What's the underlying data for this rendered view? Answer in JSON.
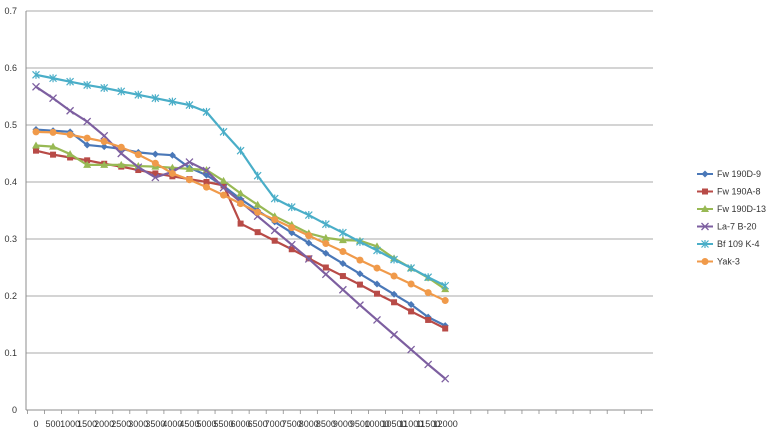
{
  "chart_data": {
    "type": "line",
    "title": "",
    "xlabel": "",
    "ylabel": "",
    "ylim": [
      0,
      0.7
    ],
    "yticks": [
      "0",
      "0.1",
      "0.2",
      "0.3",
      "0.4",
      "0.5",
      "0.6",
      "0.7"
    ],
    "grid": "horizontal",
    "legend": "right",
    "x": [
      0,
      500,
      1000,
      1500,
      2000,
      2500,
      3000,
      3500,
      4000,
      4500,
      5000,
      5500,
      6000,
      6500,
      7000,
      7500,
      8000,
      8500,
      9000,
      9500,
      10000,
      10500,
      11000,
      11500,
      12000
    ],
    "xticks": [
      "0",
      "500",
      "1000",
      "1500",
      "2000",
      "2500",
      "3000",
      "3500",
      "4000",
      "4500",
      "5000",
      "5500",
      "6000",
      "6500",
      "7000",
      "7500",
      "8000",
      "8500",
      "9000",
      "9500",
      "10000",
      "10500",
      "11000",
      "11500",
      "12000"
    ],
    "series": [
      {
        "name": "Fw 190D-9",
        "color": "#4a78b8",
        "marker": "diamond",
        "values": [
          0.492,
          0.49,
          0.488,
          0.465,
          0.462,
          0.458,
          0.452,
          0.449,
          0.447,
          0.425,
          0.412,
          0.393,
          0.37,
          0.35,
          0.33,
          0.311,
          0.293,
          0.275,
          0.257,
          0.239,
          0.221,
          0.203,
          0.185,
          0.163,
          0.148
        ]
      },
      {
        "name": "Fw 190A-8",
        "color": "#b84b47",
        "marker": "square",
        "values": [
          0.455,
          0.448,
          0.443,
          0.438,
          0.432,
          0.427,
          0.421,
          0.415,
          0.41,
          0.405,
          0.4,
          0.394,
          0.327,
          0.312,
          0.297,
          0.282,
          0.266,
          0.25,
          0.235,
          0.22,
          0.204,
          0.189,
          0.173,
          0.158,
          0.143
        ]
      },
      {
        "name": "Fw 190D-13",
        "color": "#98b954",
        "marker": "triangle",
        "values": [
          0.464,
          0.462,
          0.449,
          0.43,
          0.43,
          0.43,
          0.428,
          0.427,
          0.425,
          0.423,
          0.421,
          0.402,
          0.38,
          0.36,
          0.34,
          0.325,
          0.31,
          0.302,
          0.298,
          0.297,
          0.287,
          0.266,
          0.249,
          0.232,
          0.212
        ]
      },
      {
        "name": "La-7 B-20",
        "color": "#7d5fa0",
        "marker": "cross",
        "values": [
          0.567,
          0.547,
          0.525,
          0.506,
          0.481,
          0.45,
          0.426,
          0.408,
          0.418,
          0.435,
          0.42,
          0.39,
          0.365,
          0.34,
          0.315,
          0.29,
          0.265,
          0.238,
          0.211,
          0.184,
          0.158,
          0.132,
          0.106,
          0.08,
          0.055
        ]
      },
      {
        "name": "Bf 109 K-4",
        "color": "#4aaec8",
        "marker": "star",
        "values": [
          0.588,
          0.582,
          0.576,
          0.57,
          0.565,
          0.559,
          0.553,
          0.547,
          0.541,
          0.535,
          0.523,
          0.488,
          0.455,
          0.411,
          0.371,
          0.356,
          0.342,
          0.326,
          0.311,
          0.295,
          0.28,
          0.264,
          0.249,
          0.233,
          0.218
        ]
      },
      {
        "name": "Yak-3",
        "color": "#f09a4a",
        "marker": "circle",
        "values": [
          0.488,
          0.487,
          0.483,
          0.477,
          0.471,
          0.461,
          0.448,
          0.433,
          0.415,
          0.404,
          0.391,
          0.377,
          0.362,
          0.347,
          0.334,
          0.32,
          0.306,
          0.292,
          0.278,
          0.263,
          0.249,
          0.235,
          0.221,
          0.206,
          0.192
        ]
      }
    ]
  }
}
